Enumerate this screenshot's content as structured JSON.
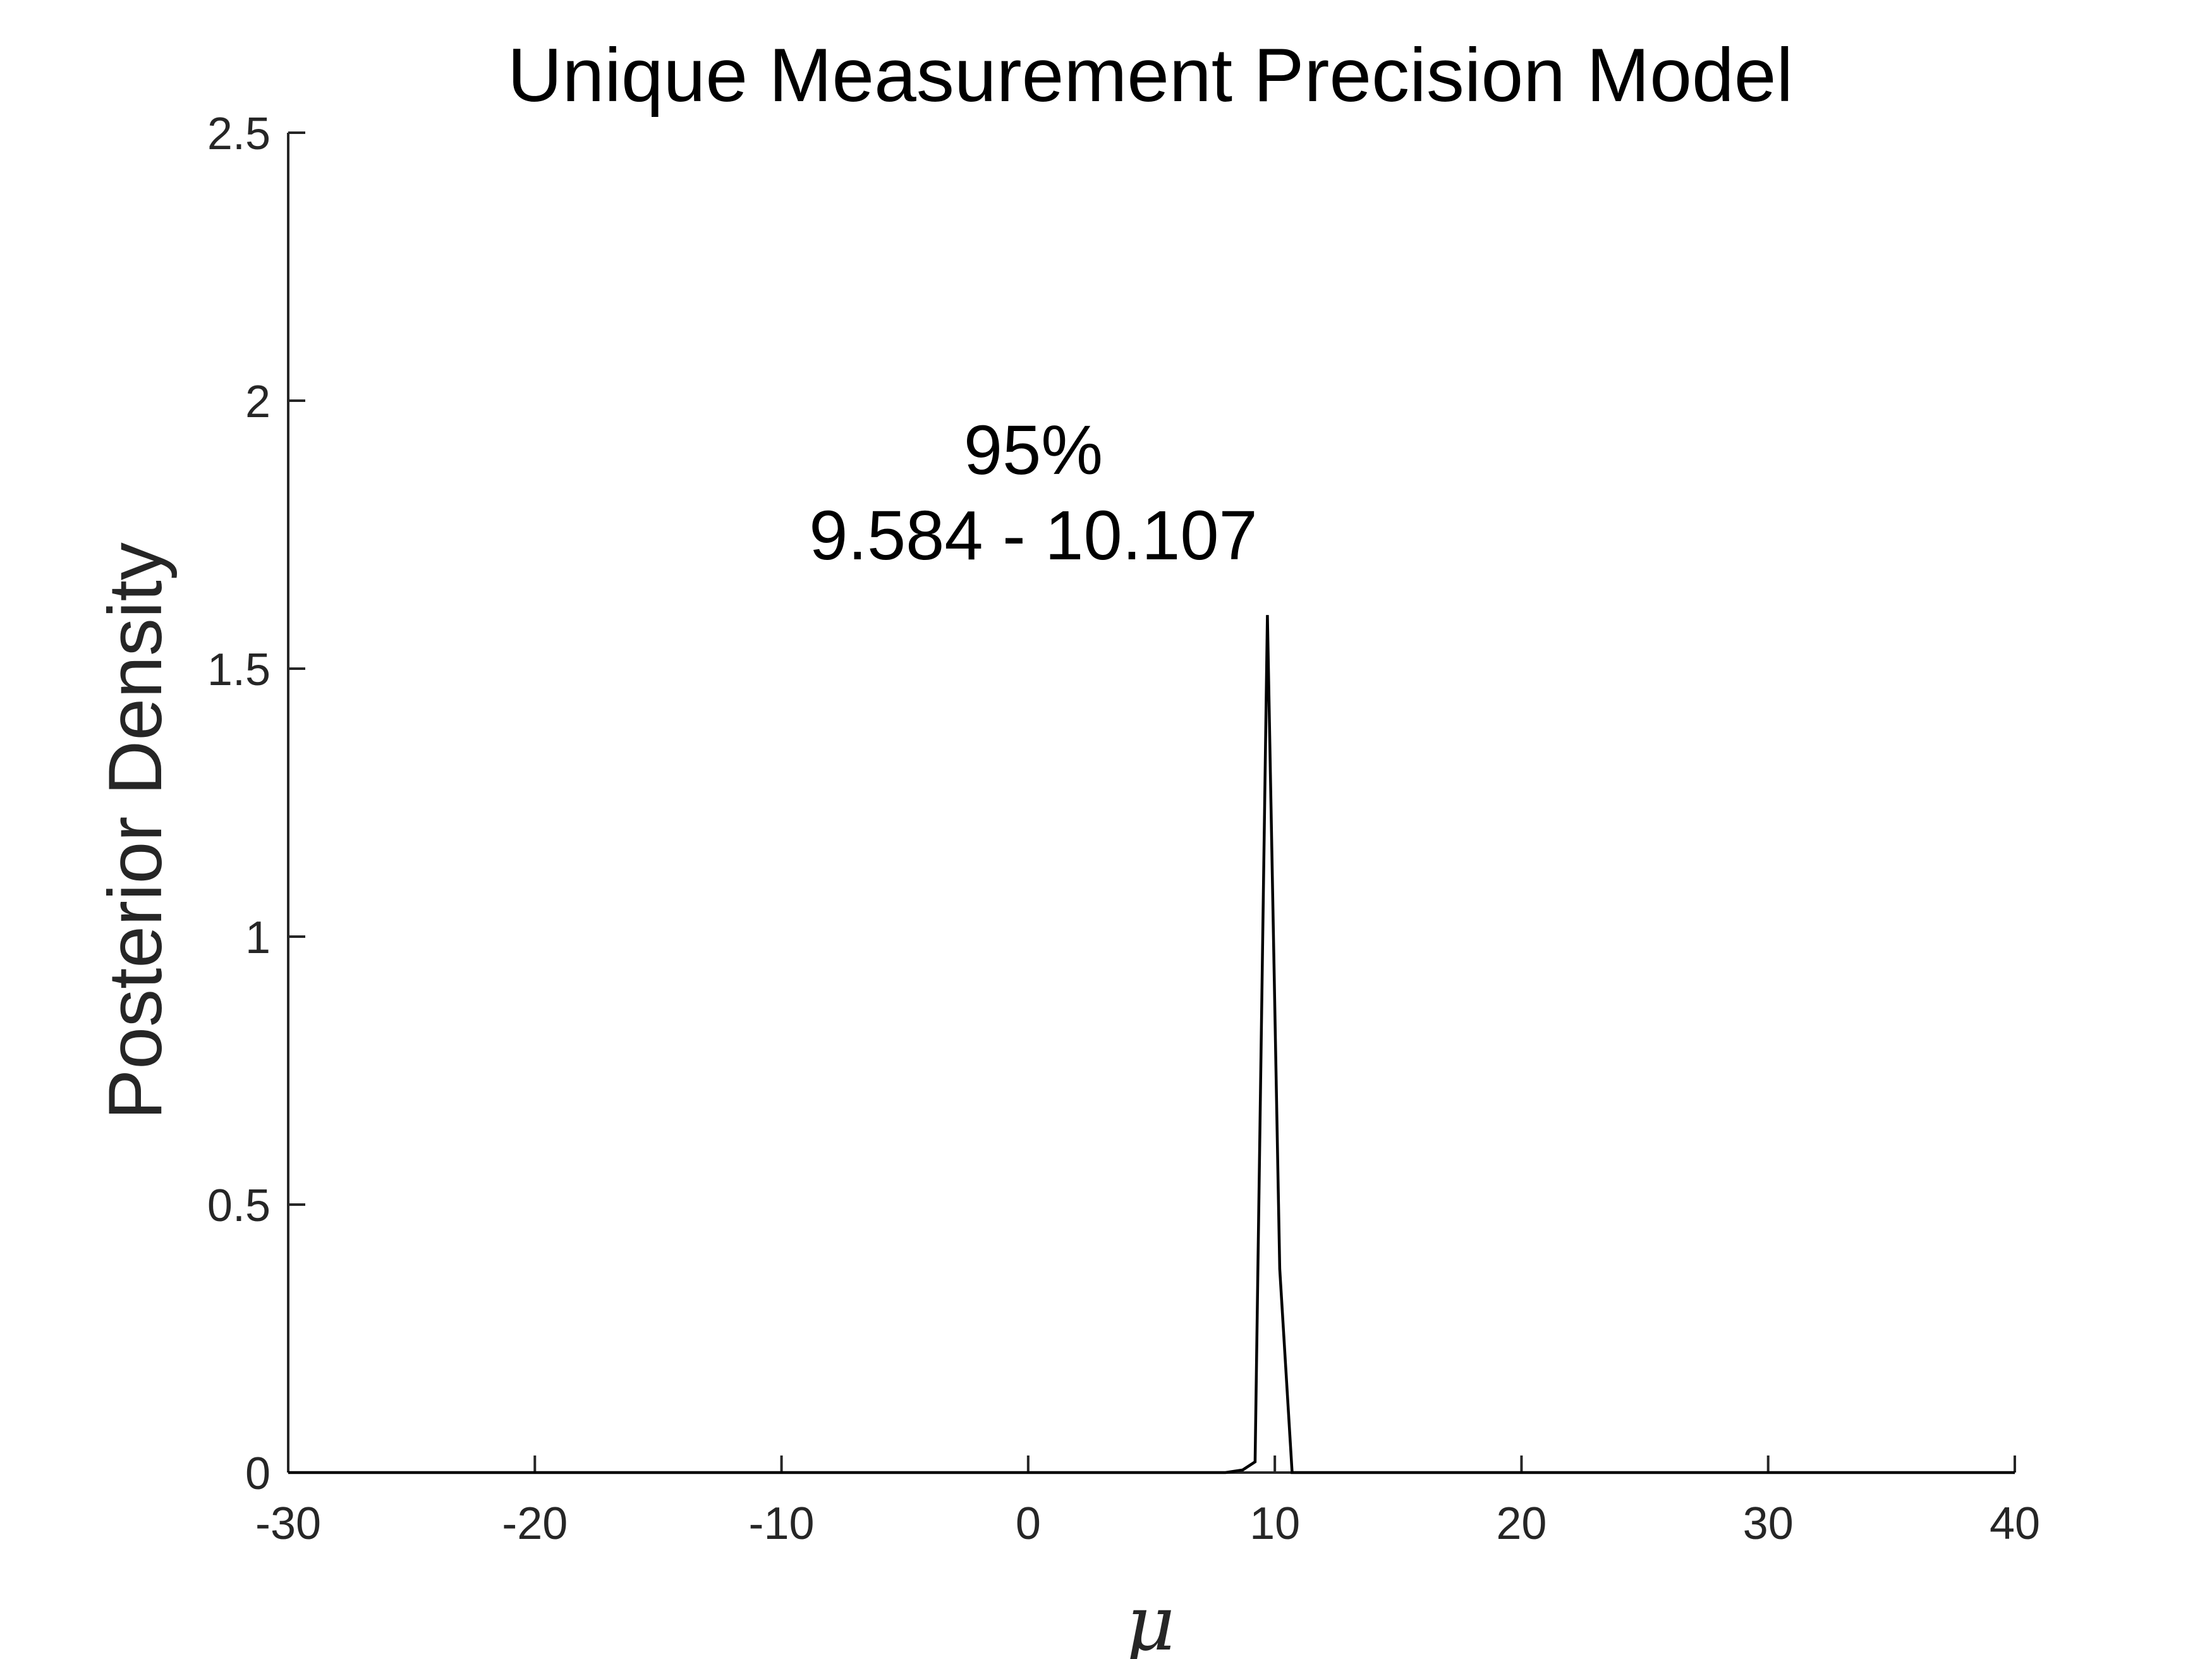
{
  "chart_data": {
    "type": "line",
    "title": "Unique Measurement Precision Model",
    "xlabel": "μ",
    "ylabel": "Posterior Density",
    "xlim": [
      -30,
      40
    ],
    "ylim": [
      0,
      2.5
    ],
    "xticks": [
      -30,
      -20,
      -10,
      0,
      10,
      20,
      30,
      40
    ],
    "xtick_labels": [
      "-30",
      "-20",
      "-10",
      "0",
      "10",
      "20",
      "30",
      "40"
    ],
    "yticks": [
      0,
      0.5,
      1,
      1.5,
      2,
      2.5
    ],
    "ytick_labels": [
      "0",
      "0.5",
      "1",
      "1.5",
      "2",
      "2.5"
    ],
    "grid": false,
    "annotation": {
      "line1": "95%",
      "line2": "9.584 - 10.107"
    },
    "series": [
      {
        "x": [
          -30,
          8.0,
          8.7,
          9.2,
          9.7,
          10.2,
          10.7,
          11.5,
          40
        ],
        "y": [
          0,
          0,
          0.005,
          0.02,
          1.6,
          0.38,
          0,
          0,
          0
        ],
        "color": "#000000"
      }
    ]
  }
}
